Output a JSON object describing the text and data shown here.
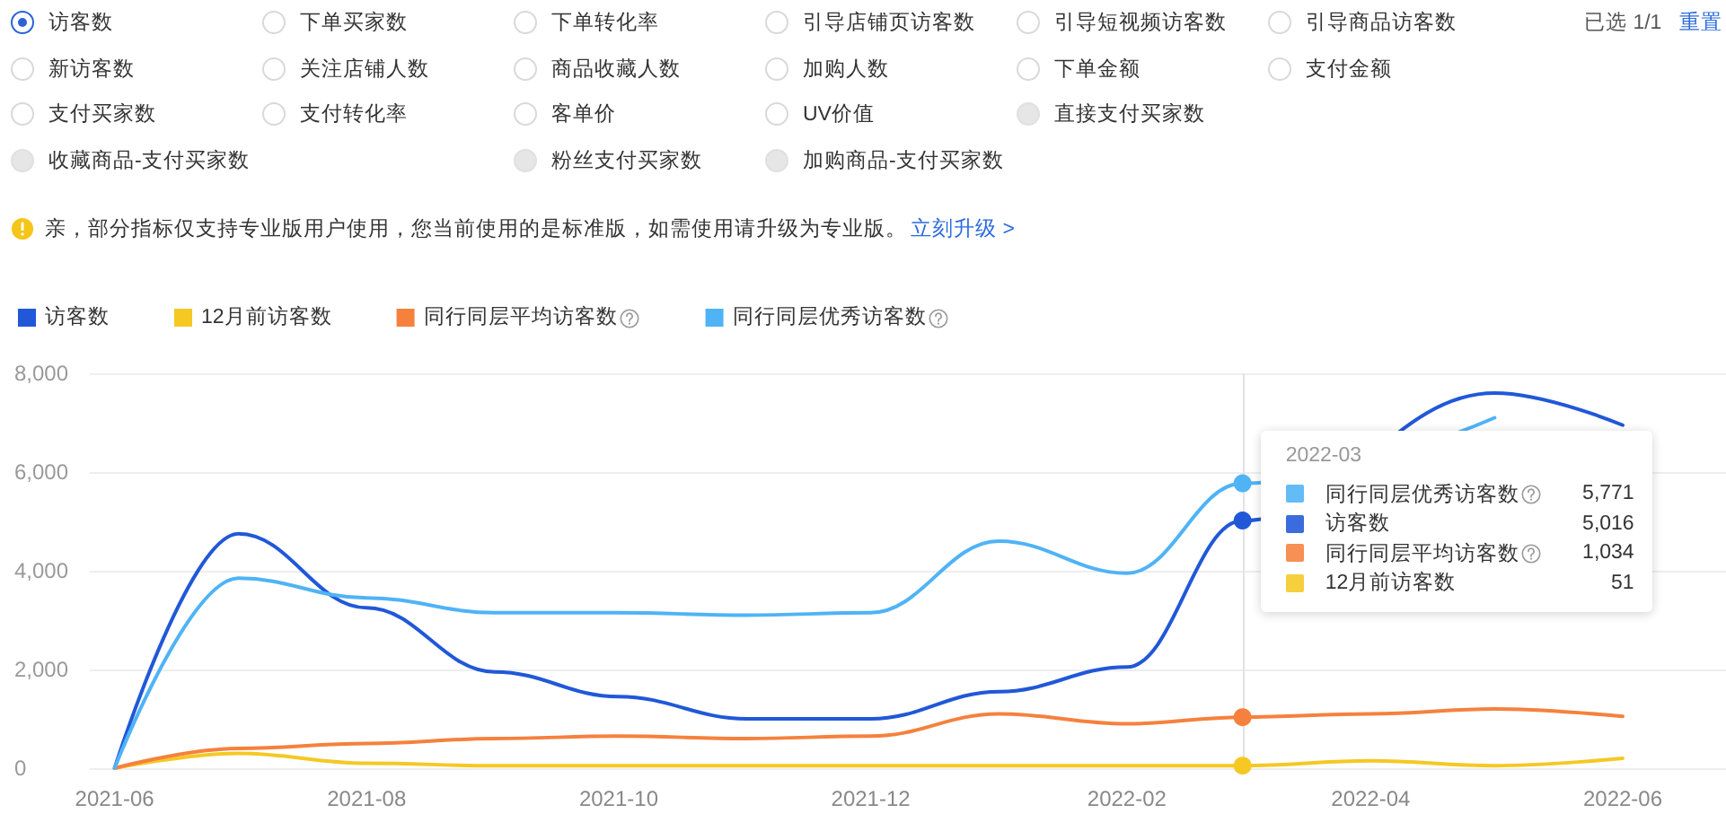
{
  "chart_data": {
    "type": "line",
    "annotations": [
      "访客数",
      "下单买家数",
      "下单转化率",
      "引导店铺页访客数",
      "引导短视频访客数",
      "引导商品访客数",
      "新访客数",
      "关注店铺人数",
      "商品收藏人数",
      "加购人数",
      "下单金额",
      "支付金额",
      "支付买家数",
      "支付转化率",
      "客单价",
      "UV价值",
      "直接支付买家数",
      "收藏商品-支付买家数",
      "粉丝支付买家数",
      "加购商品-支付买家数",
      "已选 1/1",
      "重置",
      "亲，部分指标仅支持专业版用户使用，您当前使用的是标准版，如需使用请升级为专业版。",
      "立刻升级 >",
      "同行同层优秀访客数",
      "5,771",
      "访客数",
      "5,016",
      "同行同层平均访客数",
      "1,034",
      "12月前访客数",
      "51"
    ],
    "x": [
      "2021-06",
      "2021-07",
      "2021-08",
      "2021-09",
      "2021-10",
      "2021-11",
      "2021-12",
      "2022-01",
      "2022-02",
      "2022-03",
      "2022-04",
      "2022-05",
      "2022-06"
    ],
    "xlim": [
      "2021-05-26",
      "2022-06-26"
    ],
    "xticks": [
      "2021-06",
      "2021-08",
      "2021-10",
      "2021-12",
      "2022-02",
      "2022-04",
      "2022-06"
    ],
    "ylim": [
      0,
      8000
    ],
    "yticks": [
      0,
      {
        "value": 2000,
        "label": "2,000"
      },
      {
        "value": 4000,
        "label": "4,000"
      },
      {
        "value": 6000,
        "label": "6,000"
      },
      {
        "value": 8000,
        "label": "8,000"
      }
    ],
    "grid": "y",
    "legend": "top left",
    "ref_lines": [
      {
        "axis": "x",
        "value": "2022-03",
        "label": "2022-03",
        "color": "#e3e3e3"
      }
    ],
    "series": [
      {
        "name": "访客数",
        "color": "#2058d8",
        "values": [
          0,
          4750,
          3250,
          1950,
          1450,
          1000,
          1000,
          1550,
          2050,
          5016,
          null,
          7600,
          6950
        ]
      },
      {
        "name": "12月前访客数",
        "color": "#f5c823",
        "values": [
          0,
          300,
          100,
          50,
          50,
          50,
          50,
          50,
          50,
          51,
          150,
          50,
          200
        ]
      },
      {
        "name": "同行同层平均访客数",
        "color": "#f5813d",
        "values": [
          0,
          400,
          500,
          600,
          650,
          600,
          650,
          1100,
          900,
          1034,
          1100,
          1200,
          1050
        ]
      },
      {
        "name": "同行同层优秀访客数",
        "color": "#4fb3f6",
        "values": [
          0,
          3850,
          3450,
          3150,
          3150,
          3100,
          3150,
          4600,
          3950,
          5771,
          null,
          7100,
          null
        ]
      }
    ]
  }
}
